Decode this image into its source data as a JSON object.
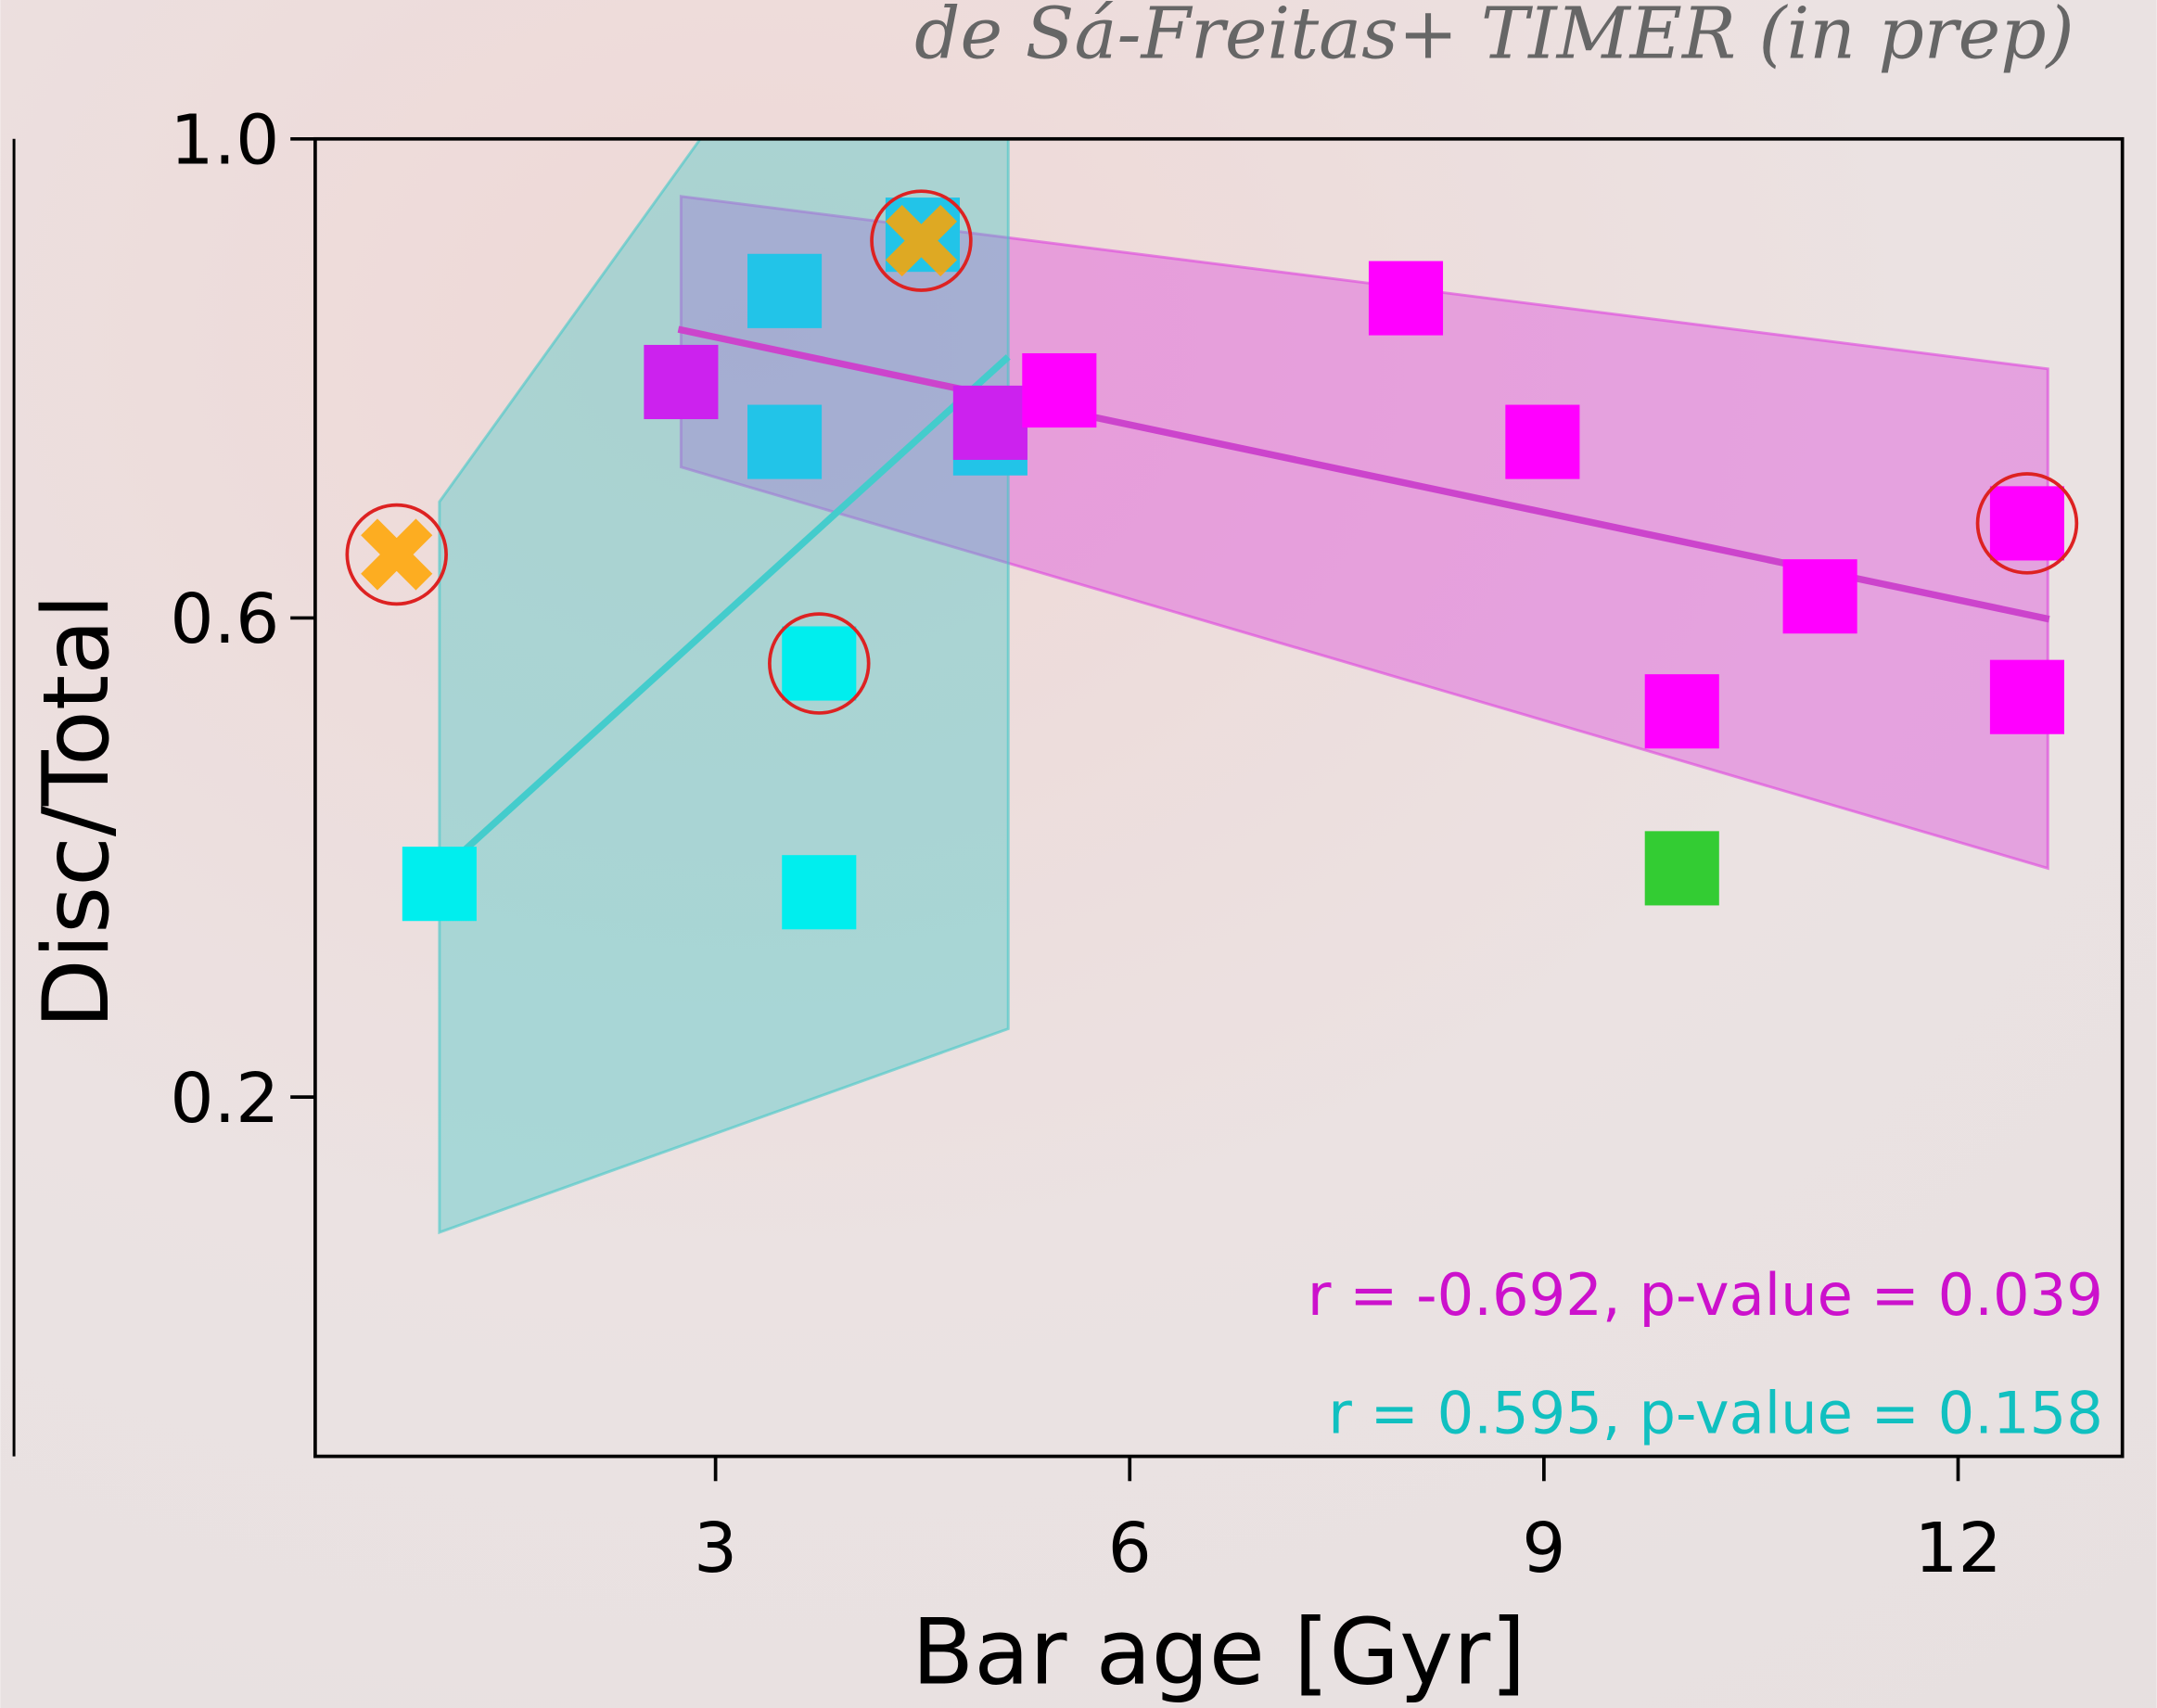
{
  "chart_data": {
    "type": "scatter",
    "title": "de Sá-Freitas+ TIMER (in prep)",
    "xlabel": "Bar age [Gyr]",
    "ylabel": "Disc/Total",
    "xlim": [
      0.1,
      13.19
    ],
    "ylim": [
      -0.1,
      1.0
    ],
    "xticks": [
      3,
      6,
      9,
      12
    ],
    "yticks": [
      0.2,
      0.6,
      {
        "value": 1.0,
        "label": "1.0"
      }
    ],
    "series": [
      {
        "marker": "band",
        "color": "#dd44dd",
        "x": [
          2.75,
          12.65,
          12.65,
          2.75
        ],
        "values": [
          0.952,
          0.808,
          0.391,
          0.726
        ]
      },
      {
        "marker": "band",
        "color": "#44c8c8",
        "x": [
          1.0,
          2.89,
          5.12,
          5.12,
          1.0
        ],
        "values": [
          0.697,
          1.0,
          1.0,
          0.257,
          0.087
        ]
      },
      {
        "marker": "line",
        "color": "#cc44cc",
        "x": [
          2.73,
          12.66
        ],
        "values": [
          0.841,
          0.599
        ]
      },
      {
        "marker": "line",
        "color": "#44cccc",
        "x": [
          0.99,
          5.12
        ],
        "values": [
          0.386,
          0.818
        ]
      },
      {
        "marker": "square",
        "color": "#22c4e8",
        "x": [
          3.5,
          3.5,
          4.99,
          4.5
        ],
        "values": [
          0.873,
          0.747,
          0.75,
          0.92
        ]
      },
      {
        "marker": "square",
        "color": "#00eeee",
        "x": [
          1.0,
          3.75,
          3.75
        ],
        "values": [
          0.378,
          0.562,
          0.371
        ]
      },
      {
        "marker": "square",
        "color": "#cc22ee",
        "x": [
          2.75,
          4.99
        ],
        "values": [
          0.797,
          0.763
        ]
      },
      {
        "marker": "square",
        "color": "#ff00ff",
        "x": [
          5.49,
          8.0,
          8.99,
          11.0,
          10.0,
          12.5,
          12.5
        ],
        "values": [
          0.79,
          0.867,
          0.747,
          0.618,
          0.522,
          0.679,
          0.534
        ]
      },
      {
        "marker": "square",
        "color": "#33cc33",
        "x": [
          10.0
        ],
        "values": [
          0.391
        ]
      },
      {
        "marker": "cross",
        "color": "#ffa500",
        "x": [
          0.69,
          4.49
        ],
        "values": [
          0.653,
          0.915
        ]
      },
      {
        "marker": "ring",
        "color": "#dd2222",
        "x": [
          0.69,
          3.75,
          4.49,
          12.5
        ],
        "values": [
          0.653,
          0.562,
          0.915,
          0.679
        ]
      }
    ],
    "annotations": [
      {
        "text": "r = -0.692, p-value = 0.039",
        "color": "#cc11cc"
      },
      {
        "text": "r = 0.595, p-value = 0.158",
        "color": "#11c0c0"
      }
    ]
  }
}
